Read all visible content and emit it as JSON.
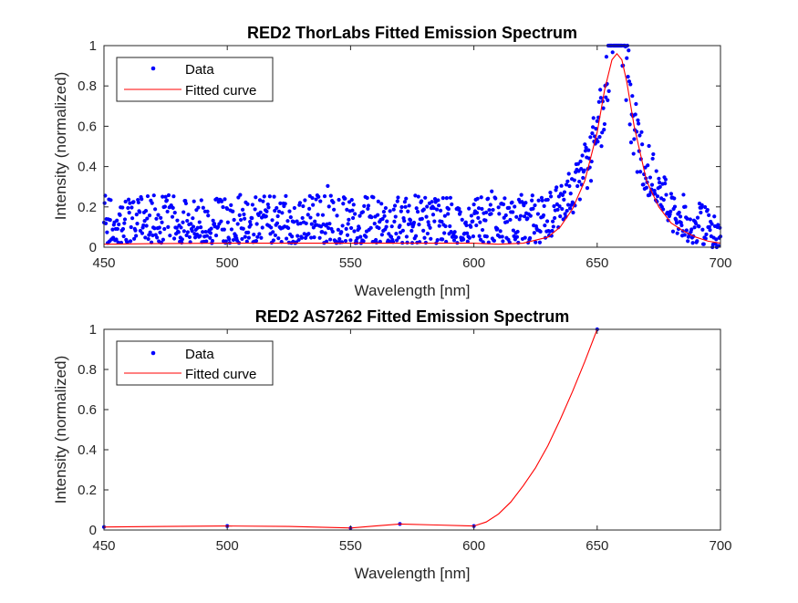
{
  "figure": {
    "background": "#ffffff"
  },
  "chart_data": [
    {
      "type": "scatter",
      "title": "RED2 ThorLabs Fitted Emission Spectrum",
      "xlabel": "Wavelength [nm]",
      "ylabel": "Intensity (normalized)",
      "xlim": [
        450,
        700
      ],
      "ylim": [
        0,
        1
      ],
      "xticks": [
        450,
        500,
        550,
        600,
        650,
        700
      ],
      "yticks": [
        0,
        0.2,
        0.4,
        0.6,
        0.8,
        1
      ],
      "xtick_labels": [
        "450",
        "500",
        "550",
        "600",
        "650",
        "700"
      ],
      "ytick_labels": [
        "0",
        "0.2",
        "0.4",
        "0.6",
        "0.8",
        "1"
      ],
      "grid": false,
      "legend": {
        "position": "top-left",
        "entries": [
          "Data",
          "Fitted curve"
        ]
      },
      "series": [
        {
          "name": "Data",
          "kind": "markers",
          "color": "#0000ff",
          "x_range": [
            450,
            700
          ],
          "x_step": 0.25,
          "noise_profile": "background ~0.02–0.28 between 450–630 nm, rising peak near 658 nm reaching 1.0, decaying to ~0.05 by 700 nm"
        },
        {
          "name": "Fitted curve",
          "kind": "line",
          "color": "#ff0000",
          "x": [
            450,
            470,
            500,
            530,
            560,
            590,
            600,
            610,
            620,
            630,
            635,
            640,
            645,
            650,
            653,
            656,
            658,
            660,
            662,
            665,
            670,
            675,
            680,
            685,
            690,
            695,
            700
          ],
          "y": [
            0.015,
            0.018,
            0.02,
            0.02,
            0.02,
            0.02,
            0.02,
            0.015,
            0.02,
            0.05,
            0.1,
            0.19,
            0.33,
            0.57,
            0.78,
            0.93,
            0.96,
            0.93,
            0.82,
            0.6,
            0.33,
            0.2,
            0.12,
            0.08,
            0.05,
            0.03,
            0.02
          ]
        }
      ]
    },
    {
      "type": "line",
      "title": "RED2 AS7262 Fitted Emission Spectrum",
      "xlabel": "Wavelength [nm]",
      "ylabel": "Intensity (normalized)",
      "xlim": [
        450,
        700
      ],
      "ylim": [
        0,
        1
      ],
      "xticks": [
        450,
        500,
        550,
        600,
        650,
        700
      ],
      "yticks": [
        0,
        0.2,
        0.4,
        0.6,
        0.8,
        1
      ],
      "xtick_labels": [
        "450",
        "500",
        "550",
        "600",
        "650",
        "700"
      ],
      "ytick_labels": [
        "0",
        "0.2",
        "0.4",
        "0.6",
        "0.8",
        "1"
      ],
      "grid": false,
      "legend": {
        "position": "top-left",
        "entries": [
          "Data",
          "Fitted curve"
        ]
      },
      "series": [
        {
          "name": "Data",
          "kind": "markers",
          "color": "#0000ff",
          "x": [
            450,
            500,
            550,
            570,
            600,
            650
          ],
          "y": [
            0.015,
            0.02,
            0.01,
            0.03,
            0.02,
            1.0
          ]
        },
        {
          "name": "Fitted curve",
          "kind": "line",
          "color": "#ff0000",
          "x": [
            450,
            475,
            500,
            525,
            550,
            560,
            570,
            585,
            600,
            605,
            610,
            615,
            620,
            625,
            630,
            635,
            640,
            645,
            650
          ],
          "y": [
            0.015,
            0.018,
            0.02,
            0.018,
            0.01,
            0.02,
            0.03,
            0.025,
            0.02,
            0.04,
            0.08,
            0.14,
            0.22,
            0.31,
            0.42,
            0.55,
            0.69,
            0.84,
            1.0
          ]
        }
      ]
    }
  ]
}
